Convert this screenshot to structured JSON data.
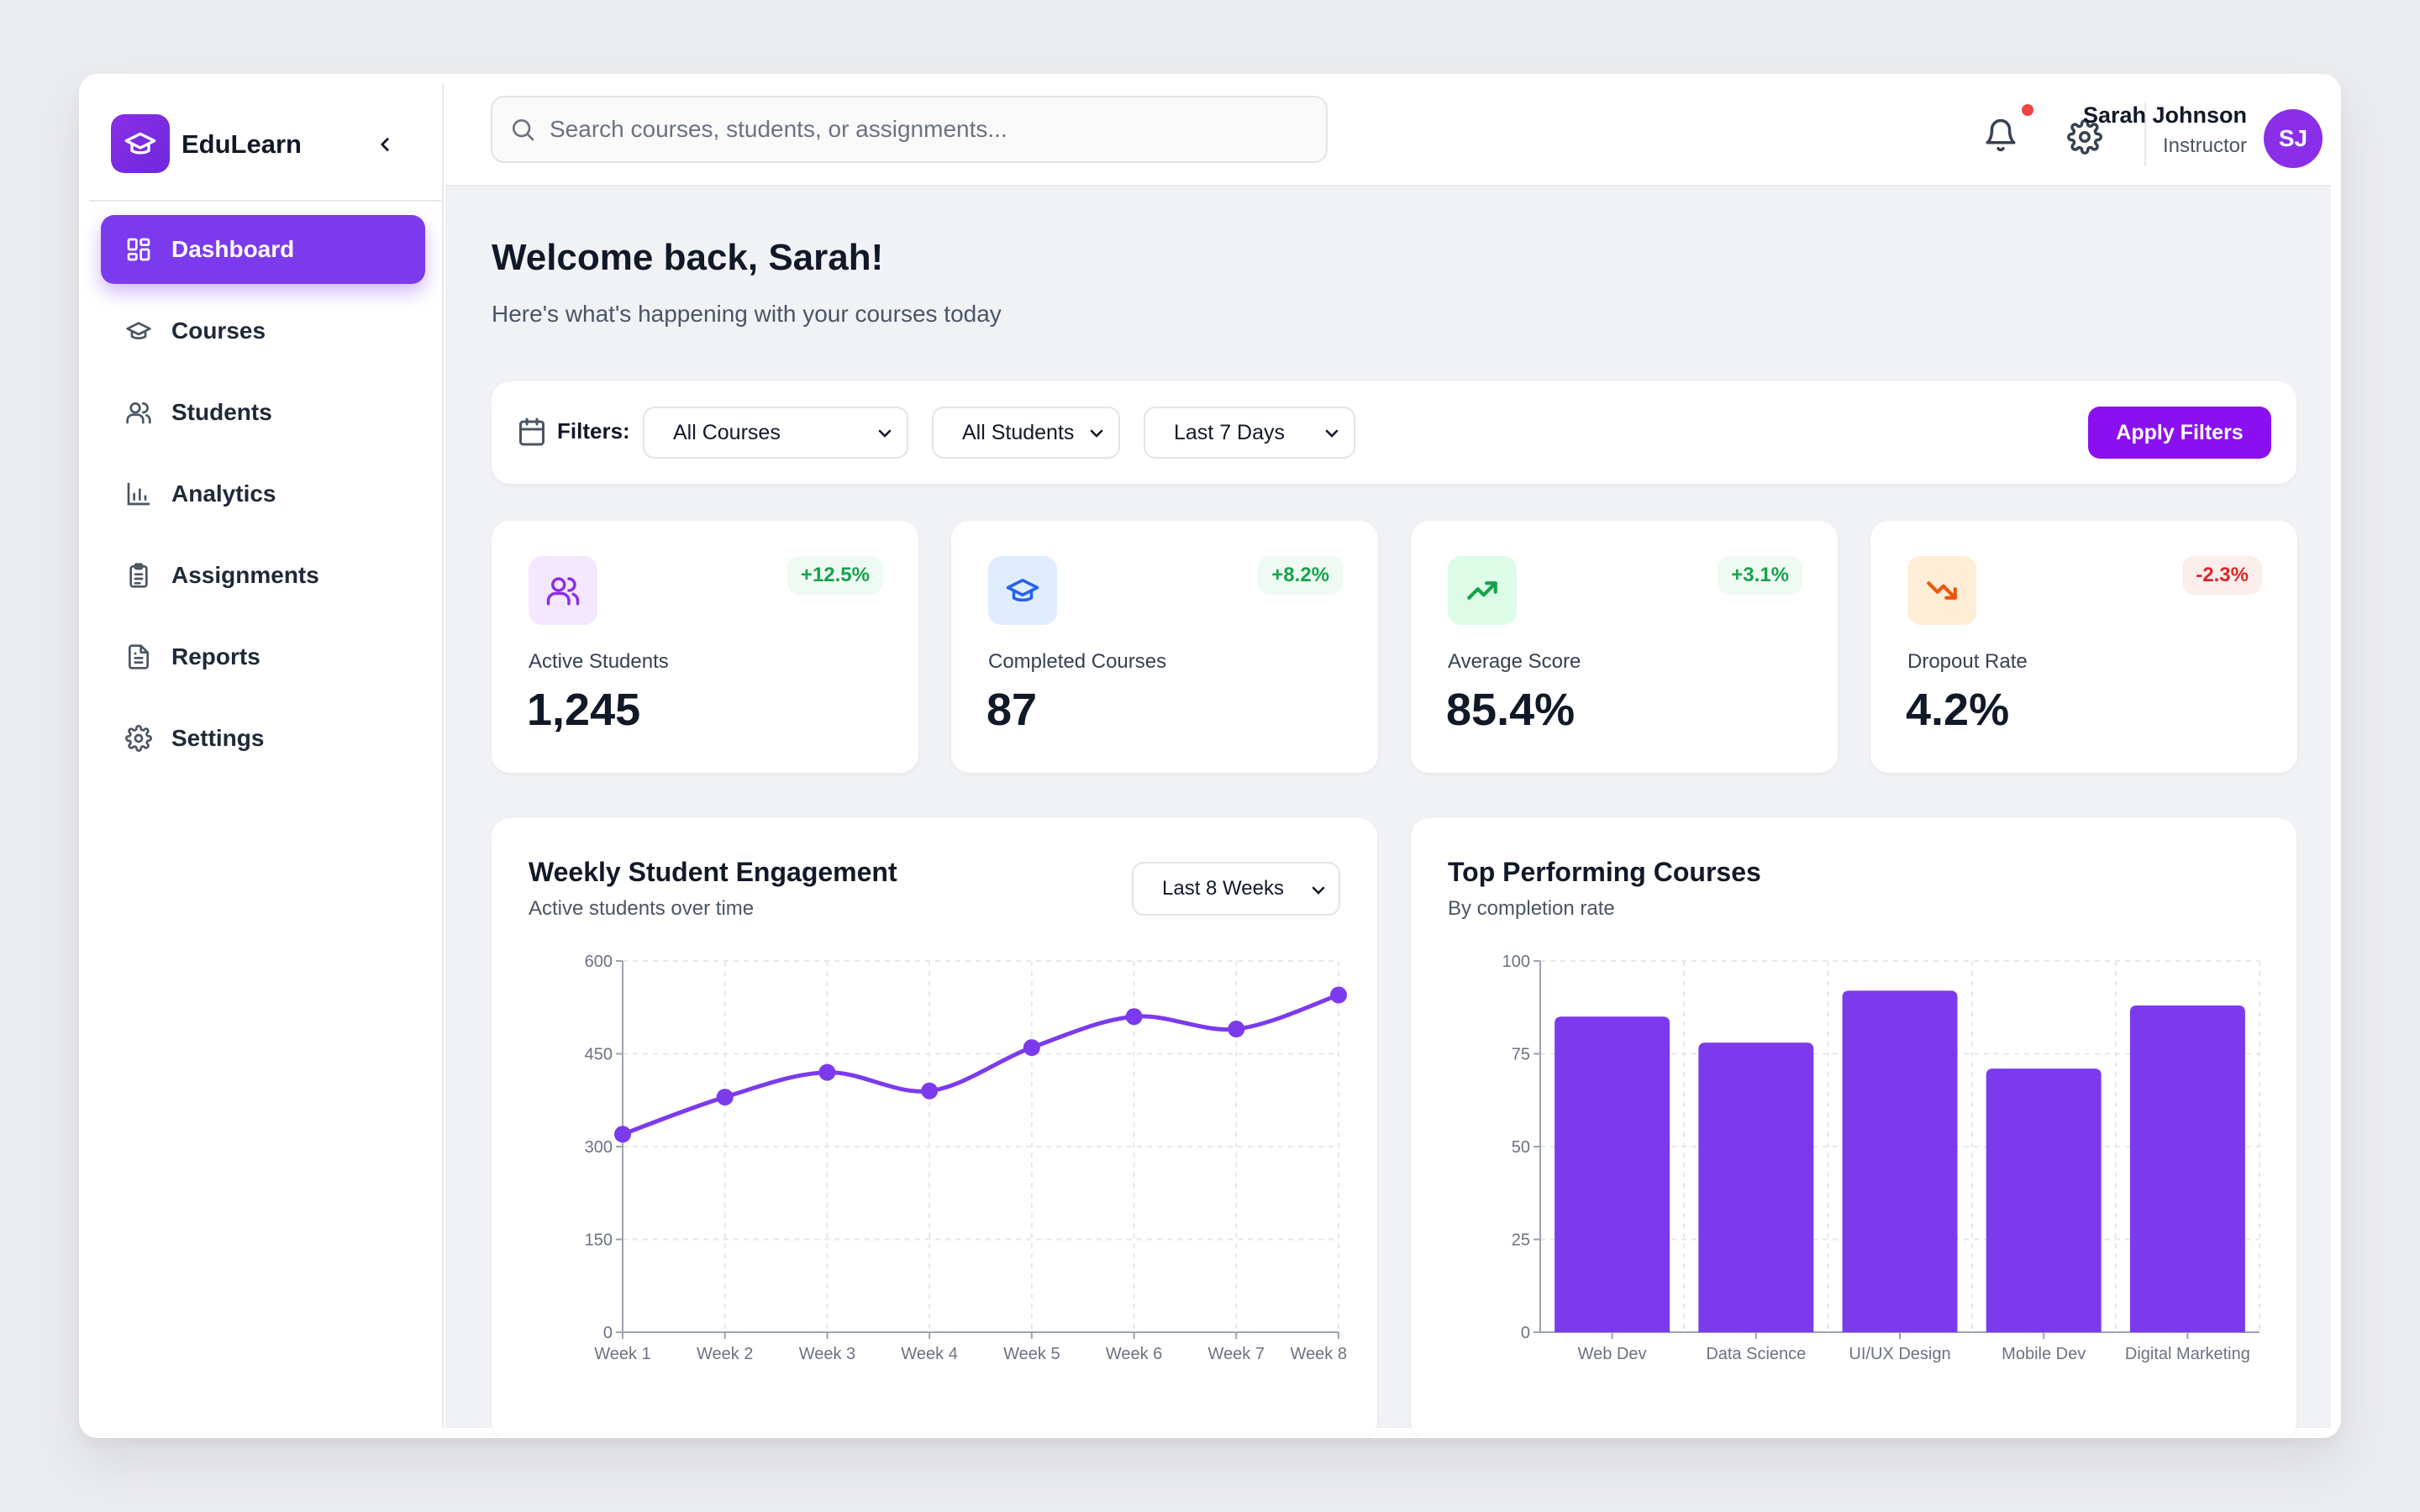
{
  "app": {
    "name": "EduLearn"
  },
  "sidebar": {
    "items": [
      {
        "label": "Dashboard",
        "icon": "dashboard-icon",
        "active": true
      },
      {
        "label": "Courses",
        "icon": "graduation-cap-icon"
      },
      {
        "label": "Students",
        "icon": "users-icon"
      },
      {
        "label": "Analytics",
        "icon": "bar-chart-icon"
      },
      {
        "label": "Assignments",
        "icon": "clipboard-icon"
      },
      {
        "label": "Reports",
        "icon": "file-text-icon"
      },
      {
        "label": "Settings",
        "icon": "gear-icon"
      }
    ]
  },
  "header": {
    "search_placeholder": "Search courses, students, or assignments...",
    "user_name": "Sarah Johnson",
    "user_role": "Instructor",
    "avatar_initials": "SJ"
  },
  "main": {
    "welcome": "Welcome back, Sarah!",
    "subtitle": "Here's what's happening with your courses today",
    "filters": {
      "label": "Filters:",
      "course": "All Courses",
      "students": "All Students",
      "range": "Last 7 Days",
      "apply": "Apply Filters"
    },
    "stats": [
      {
        "label": "Active Students",
        "value": "1,245",
        "change": "+12.5%",
        "trend": "up"
      },
      {
        "label": "Completed Courses",
        "value": "87",
        "change": "+8.2%",
        "trend": "up"
      },
      {
        "label": "Average Score",
        "value": "85.4%",
        "change": "+3.1%",
        "trend": "up"
      },
      {
        "label": "Dropout Rate",
        "value": "4.2%",
        "change": "-2.3%",
        "trend": "down"
      }
    ],
    "engagement": {
      "title": "Weekly Student Engagement",
      "subtitle": "Active students over time",
      "range": "Last 8 Weeks"
    },
    "top_courses": {
      "title": "Top Performing Courses",
      "subtitle": "By completion rate"
    }
  },
  "colors": {
    "accent": "#7c3aed",
    "positive": "#16a34a",
    "negative": "#dc2626"
  },
  "chart_data": [
    {
      "type": "line",
      "x": [
        "Week 1",
        "Week 2",
        "Week 3",
        "Week 4",
        "Week 5",
        "Week 6",
        "Week 7",
        "Week 8"
      ],
      "series": [
        {
          "values": [
            320,
            380,
            420,
            390,
            460,
            510,
            490,
            545
          ]
        }
      ],
      "yticks": [
        0,
        150,
        300,
        450,
        600
      ],
      "ylim": [
        0,
        600
      ],
      "grid": true
    },
    {
      "type": "bar",
      "categories": [
        "Web Dev",
        "Data Science",
        "UI/UX Design",
        "Mobile Dev",
        "Digital Marketing"
      ],
      "values": [
        85,
        78,
        92,
        71,
        88
      ],
      "yticks": [
        0,
        25,
        50,
        75,
        100
      ],
      "ylim": [
        0,
        100
      ],
      "grid": true
    }
  ]
}
